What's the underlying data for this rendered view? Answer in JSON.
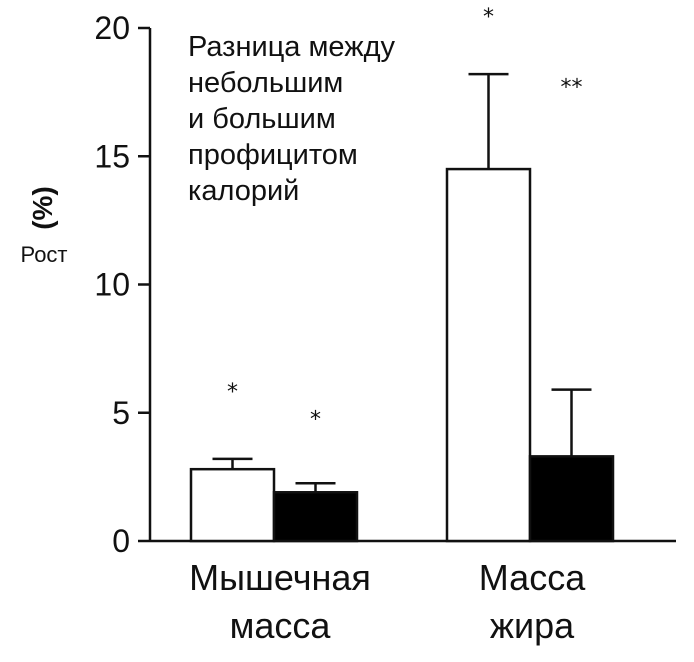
{
  "chart_data": {
    "type": "bar",
    "title_lines": [
      "Разница между",
      "небольшим",
      "и большим",
      "профицитом",
      "калорий"
    ],
    "ylabel_unit": "(%)",
    "ylabel_name": "Рост",
    "ylim": [
      0,
      20
    ],
    "yticks": [
      "0",
      "5",
      "10",
      "15",
      "20"
    ],
    "categories": [
      {
        "lines": [
          "Мышечная",
          "масса"
        ]
      },
      {
        "lines": [
          "Масса",
          "жира"
        ]
      }
    ],
    "series": [
      {
        "fill": "#ffffff",
        "values": [
          2.8,
          14.5
        ],
        "errors": [
          0.4,
          3.7
        ]
      },
      {
        "fill": "#000000",
        "values": [
          1.9,
          3.3
        ],
        "errors": [
          0.35,
          2.6
        ]
      }
    ],
    "annotations": [
      {
        "text": "*",
        "category": 0,
        "series": 0
      },
      {
        "text": "*",
        "category": 0,
        "series": 1
      },
      {
        "text": "*",
        "category": 1,
        "series": 0
      },
      {
        "text": "**",
        "category": 1,
        "series": 1
      }
    ],
    "colors": {
      "axis": "#111111",
      "bar_outline": "#111111"
    }
  }
}
